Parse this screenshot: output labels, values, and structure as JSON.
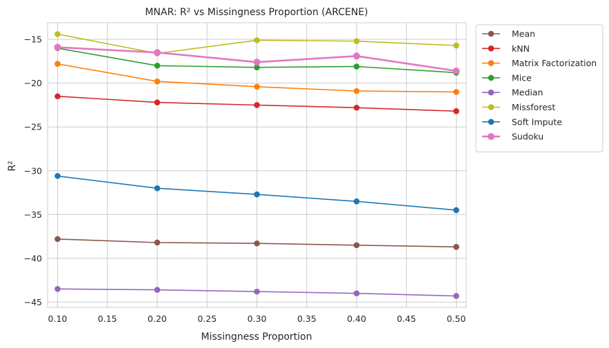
{
  "chart_data": {
    "type": "line",
    "title": "MNAR: R² vs Missingness Proportion (ARCENE)",
    "xlabel": "Missingness Proportion",
    "ylabel": "R²",
    "x": [
      0.1,
      0.2,
      0.3,
      0.4,
      0.5
    ],
    "xlim": [
      0.09,
      0.51
    ],
    "ylim": [
      -45.6,
      -13.1
    ],
    "xticks": [
      0.1,
      0.15,
      0.2,
      0.25,
      0.3,
      0.35,
      0.4,
      0.45,
      0.5
    ],
    "xtick_labels": [
      "0.10",
      "0.15",
      "0.20",
      "0.25",
      "0.30",
      "0.35",
      "0.40",
      "0.45",
      "0.50"
    ],
    "yticks": [
      -45,
      -40,
      -35,
      -30,
      -25,
      -20,
      -15
    ],
    "ytick_labels": [
      "−45",
      "−40",
      "−35",
      "−30",
      "−25",
      "−20",
      "−15"
    ],
    "grid": true,
    "legend_placement": "outside-right-top",
    "series": [
      {
        "name": "Mean",
        "color": "#8c564b",
        "values": [
          -37.8,
          -38.2,
          -38.3,
          -38.5,
          -38.7
        ]
      },
      {
        "name": "kNN",
        "color": "#d62728",
        "values": [
          -21.5,
          -22.2,
          -22.5,
          -22.8,
          -23.2
        ]
      },
      {
        "name": "Matrix Factorization",
        "color": "#ff7f0e",
        "values": [
          -17.8,
          -19.8,
          -20.4,
          -20.9,
          -21.0
        ]
      },
      {
        "name": "Mice",
        "color": "#2ca02c",
        "values": [
          -16.0,
          -18.0,
          -18.2,
          -18.1,
          -18.8
        ]
      },
      {
        "name": "Median",
        "color": "#9467bd",
        "values": [
          -43.5,
          -43.6,
          -43.8,
          -44.0,
          -44.3
        ]
      },
      {
        "name": "Missforest",
        "color": "#bcbd22",
        "values": [
          -14.4,
          -16.6,
          -15.1,
          -15.2,
          -15.7
        ]
      },
      {
        "name": "Soft Impute",
        "color": "#1f77b4",
        "values": [
          -30.6,
          -32.0,
          -32.7,
          -33.5,
          -34.5
        ]
      },
      {
        "name": "Sudoku",
        "color": "#e377c2",
        "values": [
          -15.9,
          -16.5,
          -17.6,
          -16.9,
          -18.6
        ]
      }
    ]
  }
}
